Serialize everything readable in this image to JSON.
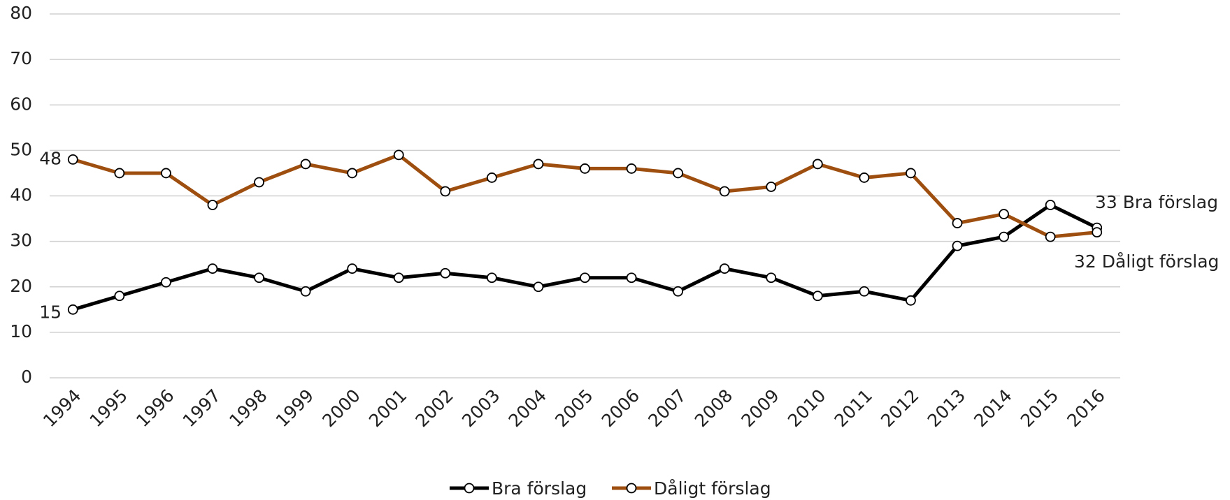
{
  "chart_data": {
    "type": "line",
    "categories": [
      "1994",
      "1995",
      "1996",
      "1997",
      "1998",
      "1999",
      "2000",
      "2001",
      "2002",
      "2003",
      "2004",
      "2005",
      "2006",
      "2007",
      "2008",
      "2009",
      "2010",
      "2011",
      "2012",
      "2013",
      "2014",
      "2015",
      "2016"
    ],
    "series": [
      {
        "name": "Bra förslag",
        "color": "#000000",
        "values": [
          15,
          18,
          21,
          24,
          22,
          19,
          24,
          22,
          23,
          22,
          20,
          22,
          22,
          19,
          24,
          22,
          18,
          19,
          17,
          29,
          31,
          38,
          33
        ]
      },
      {
        "name": "Dåligt förslag",
        "color": "#9e4f10",
        "values": [
          48,
          45,
          45,
          38,
          43,
          47,
          45,
          49,
          41,
          44,
          47,
          46,
          46,
          45,
          41,
          42,
          47,
          44,
          45,
          34,
          36,
          31,
          32
        ]
      }
    ],
    "ylim": [
      0,
      80
    ],
    "yticks": [
      0,
      10,
      20,
      30,
      40,
      50,
      60,
      70,
      80
    ],
    "grid": true,
    "legend": "bottom"
  }
}
